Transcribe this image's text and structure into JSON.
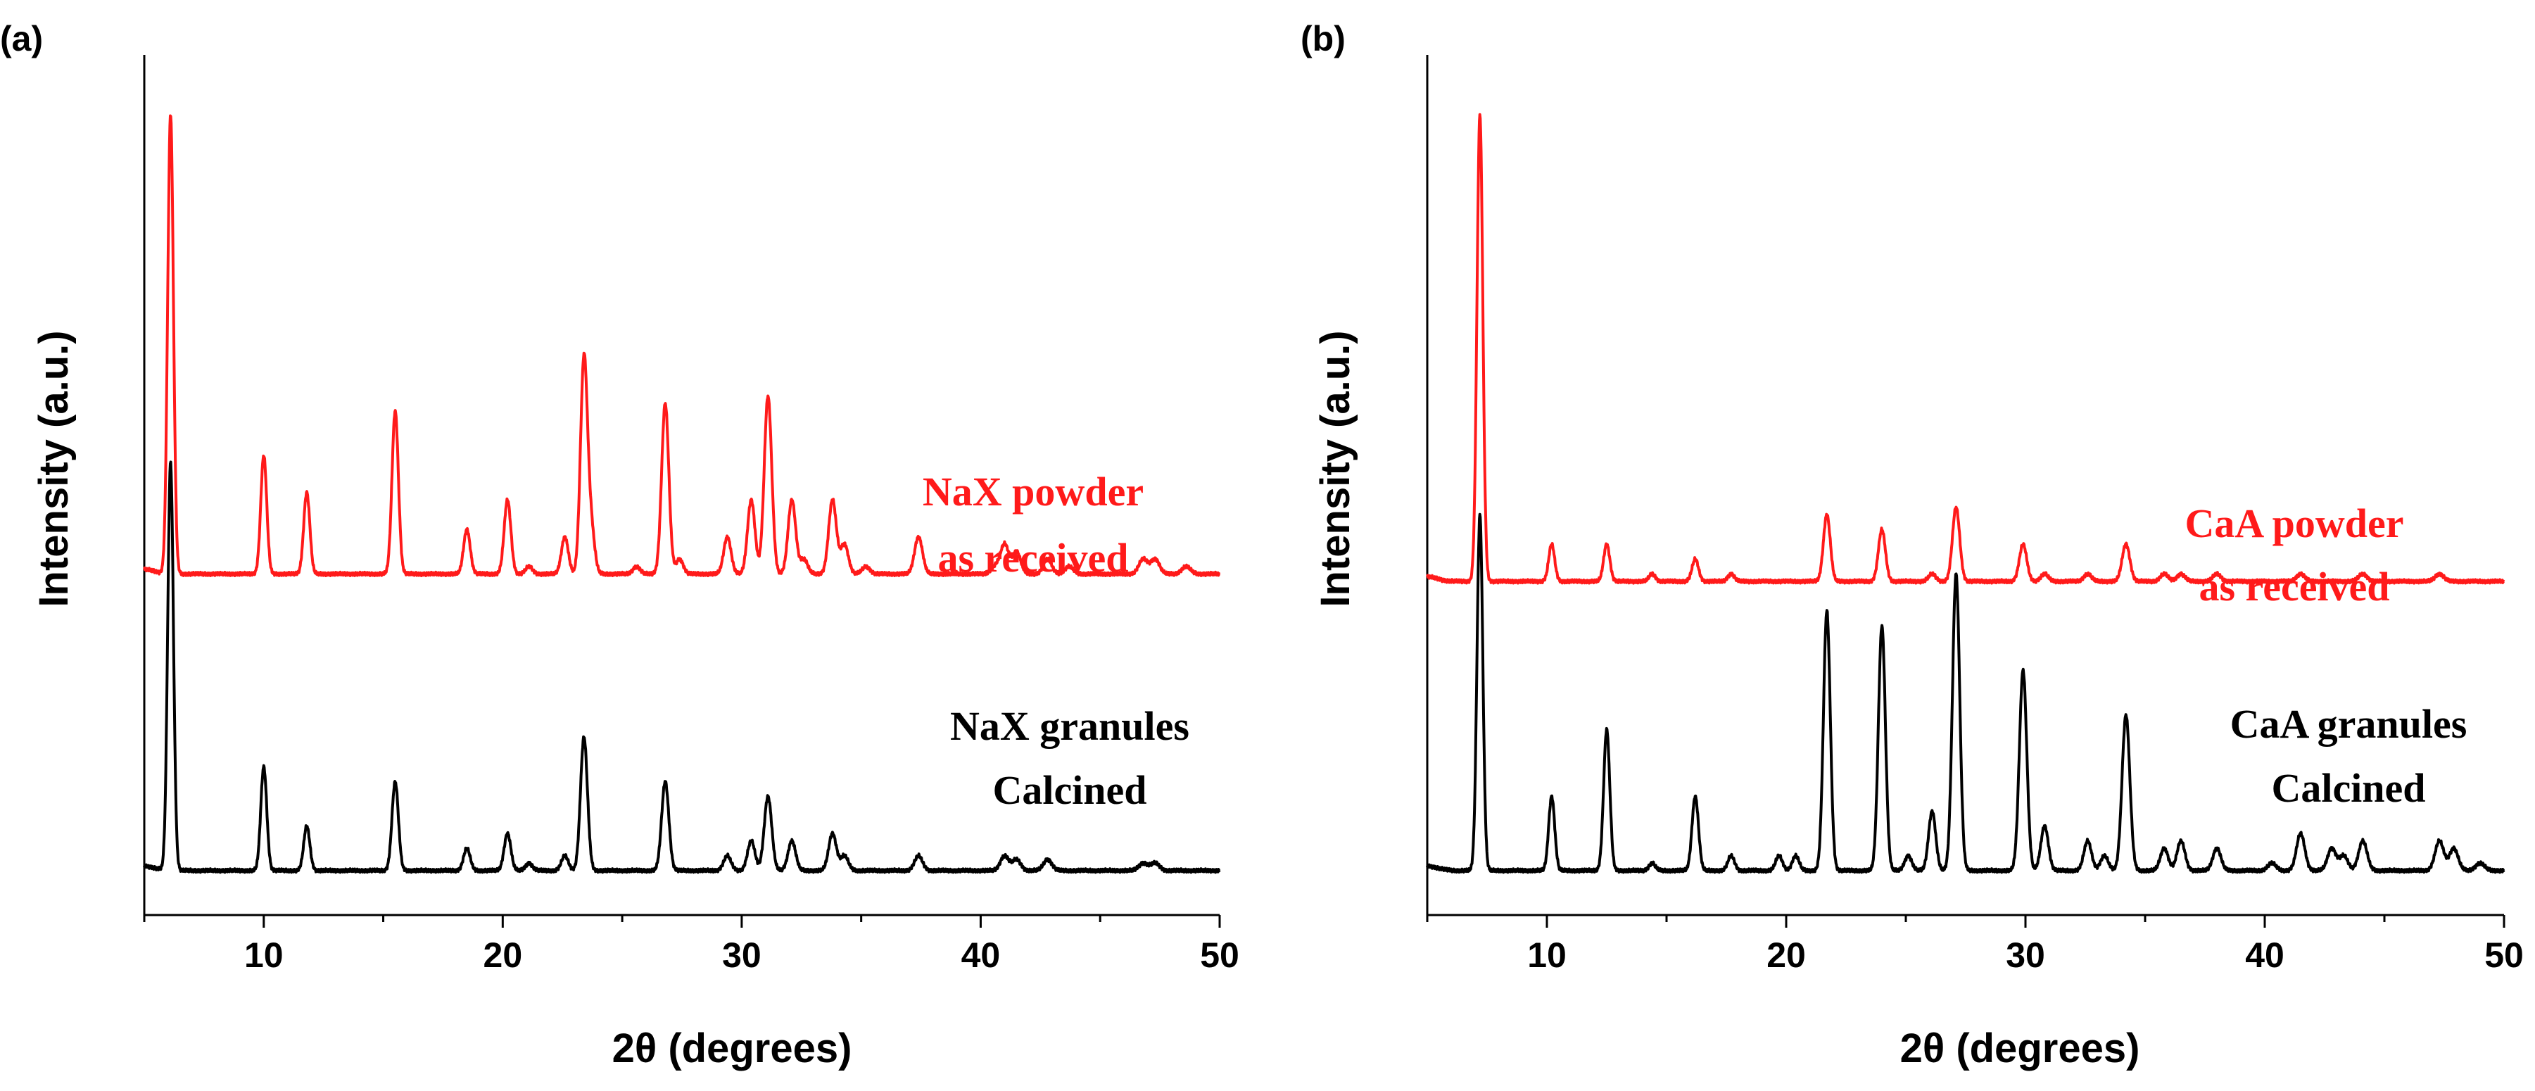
{
  "colors": {
    "powder": "#ff1a1a",
    "granules": "#000000",
    "axis": "#000000"
  },
  "chart_data": [
    {
      "type": "line",
      "panel_label": "(a)",
      "xlabel": "2θ (degrees)",
      "ylabel": "Intensity (a.u.)",
      "xlim": [
        5,
        50
      ],
      "ylim": [
        0,
        1.16
      ],
      "xticks": [
        "10",
        "20",
        "30",
        "40",
        "50"
      ],
      "yticks": [],
      "series": [
        {
          "name": "NaX powder as received",
          "label_lines": [
            "NaX powder",
            "as received"
          ],
          "color": "#ff1a1a",
          "baseline": 0.46,
          "peaks": [
            {
              "x": 6.1,
              "h": 0.62
            },
            {
              "x": 10.0,
              "h": 0.16
            },
            {
              "x": 11.8,
              "h": 0.11
            },
            {
              "x": 15.5,
              "h": 0.22
            },
            {
              "x": 18.5,
              "h": 0.06
            },
            {
              "x": 20.2,
              "h": 0.1
            },
            {
              "x": 21.1,
              "h": 0.01
            },
            {
              "x": 22.6,
              "h": 0.05
            },
            {
              "x": 23.4,
              "h": 0.29
            },
            {
              "x": 23.7,
              "h": 0.06
            },
            {
              "x": 25.6,
              "h": 0.01
            },
            {
              "x": 26.8,
              "h": 0.23
            },
            {
              "x": 27.4,
              "h": 0.02
            },
            {
              "x": 29.4,
              "h": 0.05
            },
            {
              "x": 30.4,
              "h": 0.1
            },
            {
              "x": 31.1,
              "h": 0.24
            },
            {
              "x": 32.1,
              "h": 0.1
            },
            {
              "x": 32.6,
              "h": 0.02
            },
            {
              "x": 33.8,
              "h": 0.1
            },
            {
              "x": 34.3,
              "h": 0.04
            },
            {
              "x": 35.2,
              "h": 0.01
            },
            {
              "x": 37.4,
              "h": 0.05
            },
            {
              "x": 40.6,
              "h": 0.01
            },
            {
              "x": 41.0,
              "h": 0.04
            },
            {
              "x": 41.5,
              "h": 0.03
            },
            {
              "x": 42.8,
              "h": 0.02
            },
            {
              "x": 43.7,
              "h": 0.01
            },
            {
              "x": 46.8,
              "h": 0.02
            },
            {
              "x": 47.3,
              "h": 0.02
            },
            {
              "x": 48.6,
              "h": 0.01
            }
          ]
        },
        {
          "name": "NaX granules Calcined",
          "label_lines": [
            "NaX granules",
            "Calcined"
          ],
          "color": "#000000",
          "baseline": 0.06,
          "peaks": [
            {
              "x": 6.1,
              "h": 0.55
            },
            {
              "x": 10.0,
              "h": 0.14
            },
            {
              "x": 11.8,
              "h": 0.06
            },
            {
              "x": 15.5,
              "h": 0.12
            },
            {
              "x": 18.5,
              "h": 0.03
            },
            {
              "x": 20.2,
              "h": 0.05
            },
            {
              "x": 21.1,
              "h": 0.01
            },
            {
              "x": 22.6,
              "h": 0.02
            },
            {
              "x": 23.4,
              "h": 0.18
            },
            {
              "x": 26.8,
              "h": 0.12
            },
            {
              "x": 29.4,
              "h": 0.02
            },
            {
              "x": 30.4,
              "h": 0.04
            },
            {
              "x": 31.1,
              "h": 0.1
            },
            {
              "x": 32.1,
              "h": 0.04
            },
            {
              "x": 33.8,
              "h": 0.05
            },
            {
              "x": 34.3,
              "h": 0.02
            },
            {
              "x": 37.4,
              "h": 0.02
            },
            {
              "x": 41.0,
              "h": 0.02
            },
            {
              "x": 41.5,
              "h": 0.015
            },
            {
              "x": 42.8,
              "h": 0.015
            },
            {
              "x": 46.8,
              "h": 0.01
            },
            {
              "x": 47.3,
              "h": 0.01
            }
          ]
        }
      ]
    },
    {
      "type": "line",
      "panel_label": "(b)",
      "xlabel": "2θ (degrees)",
      "ylabel": "Intensity (a.u.)",
      "xlim": [
        5,
        50
      ],
      "ylim": [
        0,
        1.16
      ],
      "xticks": [
        "10",
        "20",
        "30",
        "40",
        "50"
      ],
      "yticks": [],
      "series": [
        {
          "name": "CaA powder as received",
          "label_lines": [
            "CaA powder",
            "as received"
          ],
          "color": "#ff1a1a",
          "baseline": 0.45,
          "peaks": [
            {
              "x": 7.2,
              "h": 0.63
            },
            {
              "x": 10.2,
              "h": 0.05
            },
            {
              "x": 12.5,
              "h": 0.05
            },
            {
              "x": 14.4,
              "h": 0.01
            },
            {
              "x": 16.2,
              "h": 0.03
            },
            {
              "x": 17.7,
              "h": 0.01
            },
            {
              "x": 21.7,
              "h": 0.09
            },
            {
              "x": 24.0,
              "h": 0.07
            },
            {
              "x": 26.1,
              "h": 0.01
            },
            {
              "x": 27.1,
              "h": 0.1
            },
            {
              "x": 29.9,
              "h": 0.05
            },
            {
              "x": 30.8,
              "h": 0.01
            },
            {
              "x": 32.6,
              "h": 0.01
            },
            {
              "x": 34.2,
              "h": 0.05
            },
            {
              "x": 35.8,
              "h": 0.01
            },
            {
              "x": 36.5,
              "h": 0.01
            },
            {
              "x": 38.0,
              "h": 0.01
            },
            {
              "x": 41.5,
              "h": 0.01
            },
            {
              "x": 44.1,
              "h": 0.01
            },
            {
              "x": 47.3,
              "h": 0.01
            }
          ]
        },
        {
          "name": "CaA granules Calcined",
          "label_lines": [
            "CaA granules",
            "Calcined"
          ],
          "color": "#000000",
          "baseline": 0.06,
          "peaks": [
            {
              "x": 7.2,
              "h": 0.48
            },
            {
              "x": 10.2,
              "h": 0.1
            },
            {
              "x": 12.5,
              "h": 0.19
            },
            {
              "x": 14.4,
              "h": 0.01
            },
            {
              "x": 16.2,
              "h": 0.1
            },
            {
              "x": 17.7,
              "h": 0.02
            },
            {
              "x": 19.7,
              "h": 0.02
            },
            {
              "x": 20.4,
              "h": 0.02
            },
            {
              "x": 21.7,
              "h": 0.35
            },
            {
              "x": 24.0,
              "h": 0.33
            },
            {
              "x": 25.1,
              "h": 0.02
            },
            {
              "x": 26.1,
              "h": 0.08
            },
            {
              "x": 27.1,
              "h": 0.4
            },
            {
              "x": 29.9,
              "h": 0.27
            },
            {
              "x": 30.8,
              "h": 0.06
            },
            {
              "x": 32.6,
              "h": 0.04
            },
            {
              "x": 33.3,
              "h": 0.02
            },
            {
              "x": 34.2,
              "h": 0.21
            },
            {
              "x": 35.8,
              "h": 0.03
            },
            {
              "x": 36.5,
              "h": 0.04
            },
            {
              "x": 38.0,
              "h": 0.03
            },
            {
              "x": 40.3,
              "h": 0.01
            },
            {
              "x": 41.5,
              "h": 0.05
            },
            {
              "x": 42.8,
              "h": 0.03
            },
            {
              "x": 43.3,
              "h": 0.02
            },
            {
              "x": 44.1,
              "h": 0.04
            },
            {
              "x": 47.3,
              "h": 0.04
            },
            {
              "x": 47.9,
              "h": 0.03
            },
            {
              "x": 49.0,
              "h": 0.01
            }
          ]
        }
      ]
    }
  ]
}
